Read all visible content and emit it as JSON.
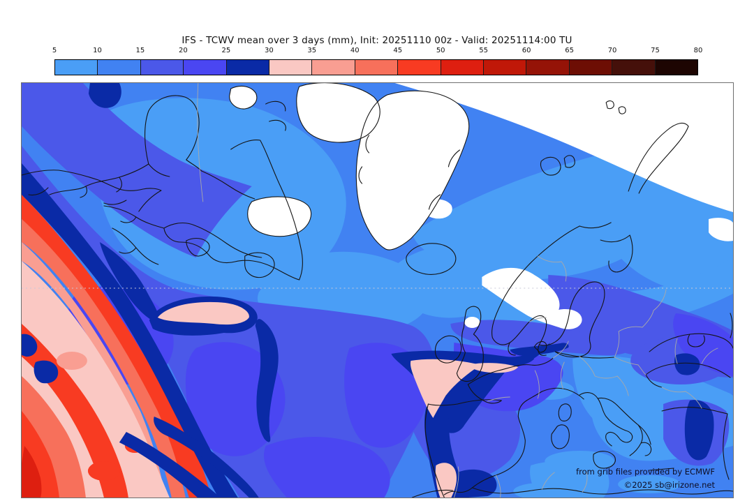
{
  "title": "IFS - TCWV mean over 3 days (mm), Init: 20251110 00z - Valid: 20251114:00 TU",
  "colorbar": {
    "unit": "mm",
    "ticks": [
      "5",
      "10",
      "15",
      "20",
      "25",
      "30",
      "35",
      "40",
      "45",
      "50",
      "55",
      "60",
      "65",
      "70",
      "75",
      "80"
    ],
    "segments": [
      {
        "range": "5-10",
        "color": "#4a9ef6"
      },
      {
        "range": "10-15",
        "color": "#4182f2"
      },
      {
        "range": "15-20",
        "color": "#4b58e9"
      },
      {
        "range": "20-25",
        "color": "#4a46f2"
      },
      {
        "range": "25-30",
        "color": "#0a2aa6"
      },
      {
        "range": "30-35",
        "color": "#fac8c3"
      },
      {
        "range": "35-40",
        "color": "#f99e92"
      },
      {
        "range": "40-45",
        "color": "#f7705b"
      },
      {
        "range": "45-50",
        "color": "#f83b22"
      },
      {
        "range": "50-55",
        "color": "#de1f10"
      },
      {
        "range": "55-60",
        "color": "#c01808"
      },
      {
        "range": "60-65",
        "color": "#951307"
      },
      {
        "range": "65-70",
        "color": "#6d0e04"
      },
      {
        "range": "70-75",
        "color": "#45100a"
      },
      {
        "range": "75-80",
        "color": "#1d0502"
      }
    ]
  },
  "map": {
    "attribution_line1": "from grib files provided by ECMWF",
    "attribution_line2": "©2025 sb@irizone.net"
  }
}
